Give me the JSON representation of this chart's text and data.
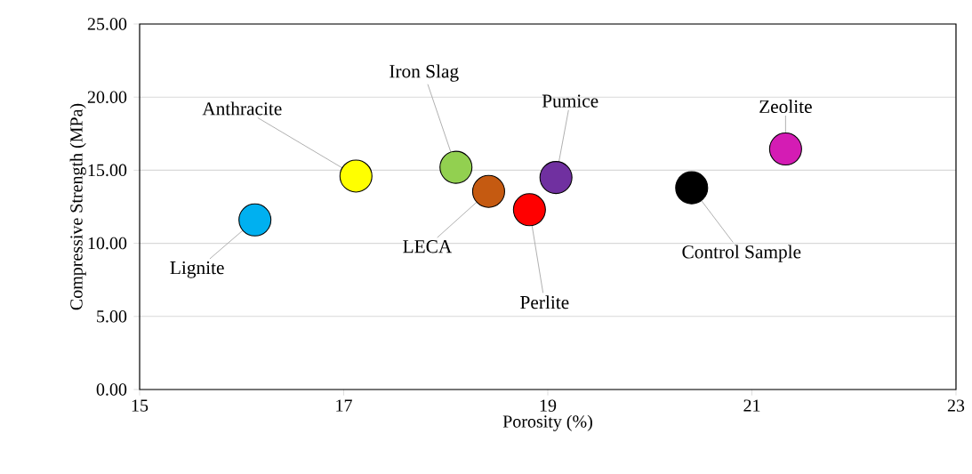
{
  "chart_data": {
    "type": "scatter",
    "xlabel": "Porosity (%)",
    "ylabel": "Compressive Strength (MPa)",
    "x": [
      16.13,
      17.12,
      18.1,
      18.42,
      18.82,
      19.08,
      20.41,
      21.33
    ],
    "values": [
      11.6,
      14.6,
      15.2,
      13.55,
      12.3,
      14.5,
      13.8,
      16.45
    ],
    "colors": [
      "#00b0f0",
      "#ffff00",
      "#92d050",
      "#c55a11",
      "#ff0000",
      "#7030a0",
      "#000000",
      "#d41cb4"
    ],
    "xlim": [
      15,
      23
    ],
    "xticks": [
      15,
      17,
      19,
      21,
      23
    ],
    "ylim": [
      0,
      25
    ],
    "yticks": [
      {
        "value": 0,
        "label": "0.00"
      },
      {
        "value": 5,
        "label": "5.00"
      },
      {
        "value": 10,
        "label": "10.00"
      },
      {
        "value": 15,
        "label": "15.00"
      },
      {
        "value": 20,
        "label": "20.00"
      },
      {
        "value": 25,
        "label": "25.00"
      }
    ],
    "grid": "y",
    "annotations": [
      {
        "text": "Lignite",
        "x": 16.13,
        "y": 11.6
      },
      {
        "text": "Anthracite",
        "x": 17.12,
        "y": 14.6
      },
      {
        "text": "Iron Slag",
        "x": 18.1,
        "y": 15.2
      },
      {
        "text": "LECA",
        "x": 18.42,
        "y": 13.55
      },
      {
        "text": "Perlite",
        "x": 18.82,
        "y": 12.3
      },
      {
        "text": "Pumice",
        "x": 19.08,
        "y": 14.5
      },
      {
        "text": "Control Sample",
        "x": 20.41,
        "y": 13.8
      },
      {
        "text": "Zeolite",
        "x": 21.33,
        "y": 16.45
      }
    ]
  }
}
